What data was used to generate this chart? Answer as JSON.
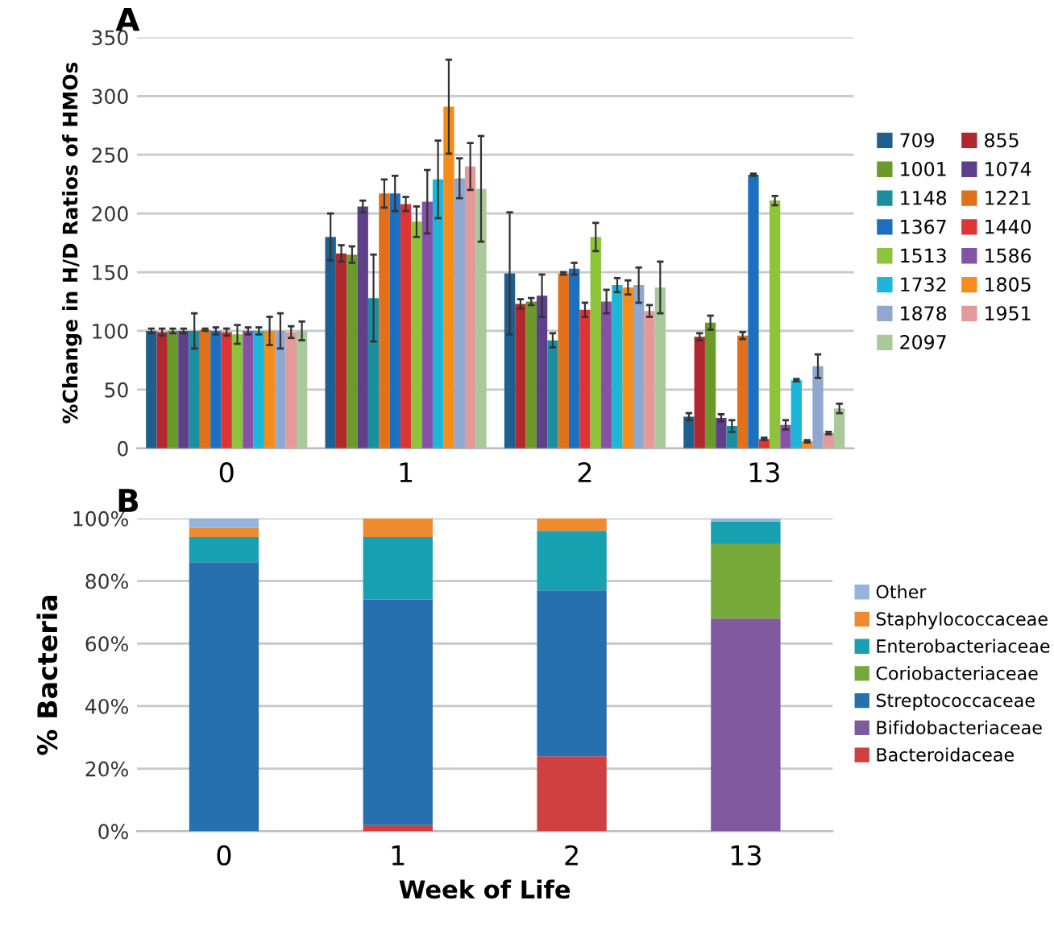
{
  "chart_data": [
    {
      "type": "bar",
      "title": "A",
      "ylabel": "%Change in H/D Ratios of HMOs",
      "categories": [
        "0",
        "1",
        "2",
        "13"
      ],
      "ylim": [
        0,
        350
      ],
      "yticks": [
        0,
        50,
        100,
        150,
        200,
        250,
        300,
        350
      ],
      "grid": "y",
      "legend": "right",
      "series": [
        {
          "name": "709",
          "color": "#1f5f8f",
          "values": [
            100,
            180,
            149,
            27
          ],
          "errors": [
            2,
            20,
            52,
            3
          ]
        },
        {
          "name": "855",
          "color": "#b0282e",
          "values": [
            99,
            166,
            123,
            95
          ],
          "errors": [
            3,
            7,
            4,
            3
          ]
        },
        {
          "name": "1001",
          "color": "#6a9a2a",
          "values": [
            100,
            165,
            125,
            107
          ],
          "errors": [
            2,
            7,
            3,
            6
          ]
        },
        {
          "name": "1074",
          "color": "#5e3f8a",
          "values": [
            100,
            206,
            130,
            26
          ],
          "errors": [
            2,
            5,
            18,
            3
          ]
        },
        {
          "name": "1148",
          "color": "#1a8fa0",
          "values": [
            100,
            128,
            92,
            19
          ],
          "errors": [
            15,
            37,
            6,
            5
          ]
        },
        {
          "name": "1221",
          "color": "#e2701a",
          "values": [
            101,
            217,
            149,
            96
          ],
          "errors": [
            1,
            12,
            1,
            3
          ]
        },
        {
          "name": "1367",
          "color": "#1d6fc0",
          "values": [
            100,
            217,
            153,
            233
          ],
          "errors": [
            3,
            15,
            5,
            1
          ]
        },
        {
          "name": "1440",
          "color": "#dd3535",
          "values": [
            99,
            208,
            118,
            8
          ],
          "errors": [
            3,
            6,
            6,
            1
          ]
        },
        {
          "name": "1513",
          "color": "#8dc43c",
          "values": [
            97,
            193,
            180,
            211
          ],
          "errors": [
            8,
            13,
            12,
            4
          ]
        },
        {
          "name": "1586",
          "color": "#8552a8",
          "values": [
            100,
            210,
            125,
            20
          ],
          "errors": [
            3,
            27,
            10,
            4
          ]
        },
        {
          "name": "1732",
          "color": "#1bb6d8",
          "values": [
            100,
            229,
            139,
            58
          ],
          "errors": [
            3,
            33,
            6,
            1
          ]
        },
        {
          "name": "1805",
          "color": "#f58c1c",
          "values": [
            100,
            291,
            137,
            6
          ],
          "errors": [
            12,
            40,
            6,
            1
          ]
        },
        {
          "name": "1878",
          "color": "#8fa8cf",
          "values": [
            100,
            230,
            139,
            70
          ],
          "errors": [
            15,
            17,
            15,
            10
          ]
        },
        {
          "name": "1951",
          "color": "#e59a9a",
          "values": [
            99,
            240,
            117,
            13
          ],
          "errors": [
            5,
            20,
            5,
            1
          ]
        },
        {
          "name": "2097",
          "color": "#a9c99a",
          "values": [
            100,
            221,
            137,
            34
          ],
          "errors": [
            8,
            45,
            22,
            4
          ]
        }
      ]
    },
    {
      "type": "bar",
      "stacked": true,
      "title": "B",
      "xlabel": "Week of Life",
      "ylabel": "% Bacteria",
      "categories": [
        "0",
        "1",
        "2",
        "13"
      ],
      "ylim": [
        0,
        100
      ],
      "yticks": [
        {
          "value": 0,
          "label": "0%"
        },
        {
          "value": 20,
          "label": "20%"
        },
        {
          "value": 40,
          "label": "40%"
        },
        {
          "value": 60,
          "label": "60%"
        },
        {
          "value": 80,
          "label": "80%"
        },
        {
          "value": 100,
          "label": "100%"
        }
      ],
      "grid": "y",
      "legend": "right",
      "series": [
        {
          "name": "Bacteroidaceae",
          "color": "#cf4040",
          "values": [
            0,
            2,
            24,
            0
          ]
        },
        {
          "name": "Bifidobacteriaceae",
          "color": "#7f5a9e",
          "values": [
            0,
            0,
            0,
            68
          ]
        },
        {
          "name": "Streptococcaceae",
          "color": "#2770b0",
          "values": [
            86,
            72,
            53,
            0
          ]
        },
        {
          "name": "Coriobacteriaceae",
          "color": "#77a83a",
          "values": [
            0,
            0,
            0,
            24
          ]
        },
        {
          "name": "Enterobacteriaceae",
          "color": "#16a0b0",
          "values": [
            8,
            20,
            19,
            7
          ]
        },
        {
          "name": "Staphylococcaceae",
          "color": "#ee8a30",
          "values": [
            3,
            6,
            4,
            0
          ]
        },
        {
          "name": "Other",
          "color": "#94b4dc",
          "values": [
            3,
            0,
            0,
            1
          ]
        }
      ]
    }
  ]
}
